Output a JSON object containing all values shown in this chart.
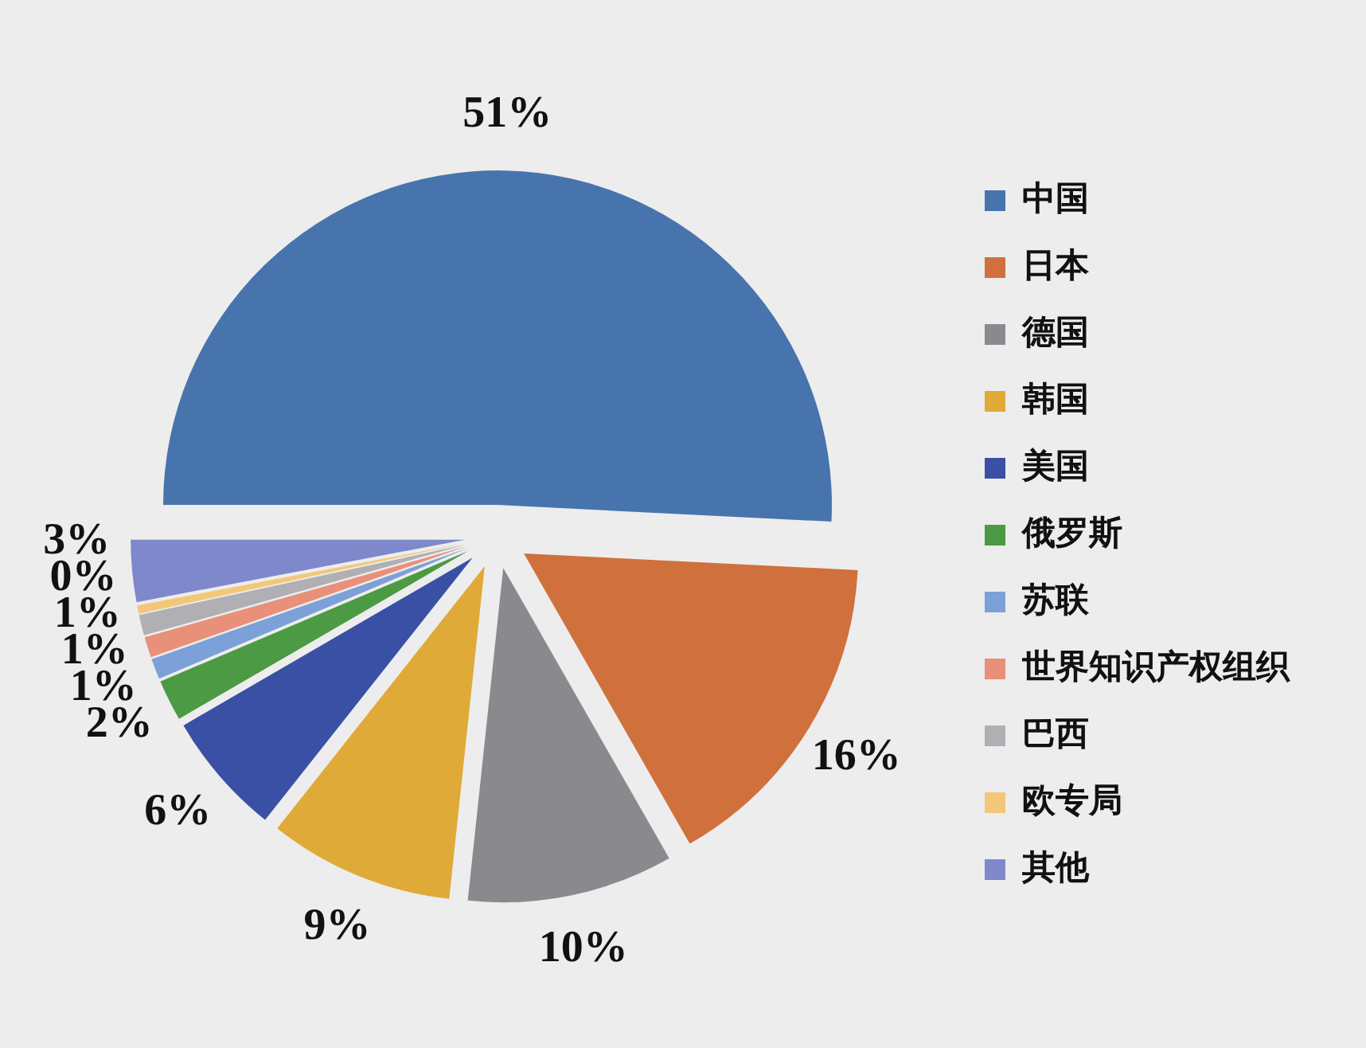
{
  "chart_data": {
    "type": "pie",
    "categories": [
      "中国",
      "日本",
      "德国",
      "韩国",
      "美国",
      "俄罗斯",
      "苏联",
      "世界知识产权组织",
      "巴西",
      "欧专局",
      "其他"
    ],
    "values": [
      51,
      16,
      10,
      9,
      6,
      2,
      1,
      1,
      1,
      0.4,
      3
    ],
    "colors": [
      "#4874ad",
      "#d0703c",
      "#8a8a8e",
      "#e0aa38",
      "#3a50a5",
      "#4c9a44",
      "#7ca0d8",
      "#e8907a",
      "#b0b0b4",
      "#f2c878",
      "#8088cc"
    ],
    "value_labels": [
      "51%",
      "16%",
      "10%",
      "9%",
      "6%",
      "2%",
      "1%",
      "1%",
      "1%",
      "0%",
      "3%"
    ],
    "legend": "right"
  }
}
